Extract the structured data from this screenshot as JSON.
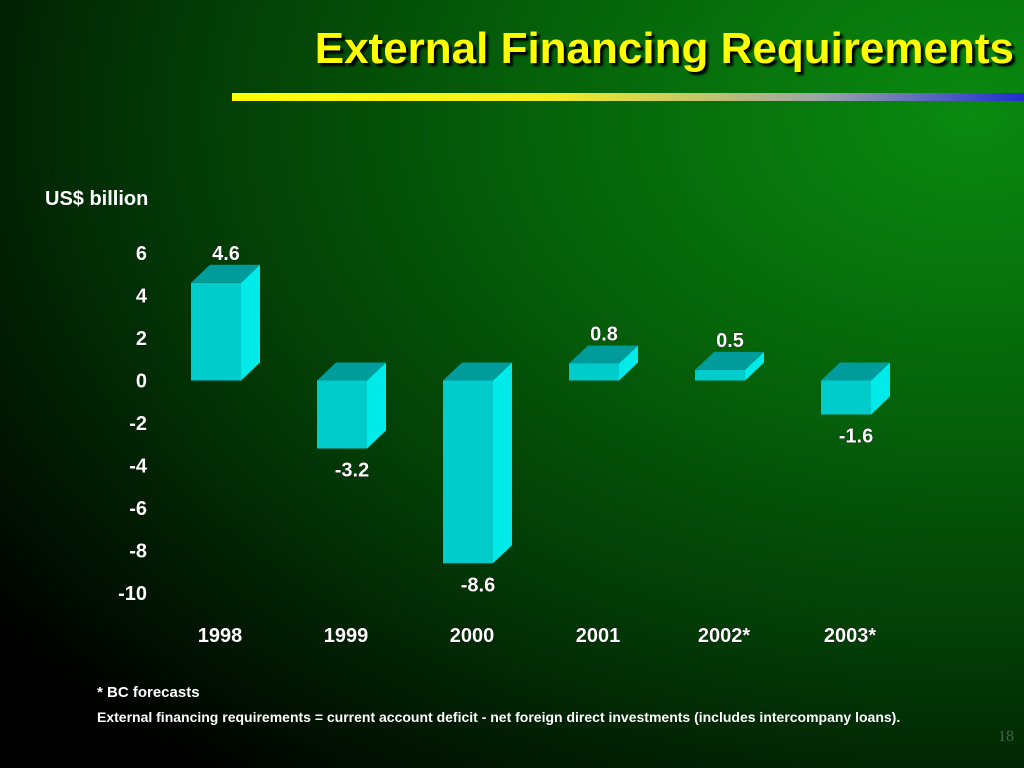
{
  "slide": {
    "title": "External Financing Requirements",
    "footnote_1": "* BC forecasts",
    "footnote_2": "External financing requirements = current account deficit - net foreign direct investments (includes intercompany loans).",
    "page_number": "18"
  },
  "colors": {
    "bar_front": "#00cccc",
    "bar_side": "#00eaea",
    "bar_top": "#009c9c",
    "title": "#ffff00",
    "text": "#ffffff"
  },
  "chart_data": {
    "type": "bar",
    "categories": [
      "1998",
      "1999",
      "2000",
      "2001",
      "2002*",
      "2003*"
    ],
    "values": [
      4.6,
      -3.2,
      -8.6,
      0.8,
      0.5,
      -1.6
    ],
    "data_labels": [
      "4.6",
      "-3.2",
      "-8.6",
      "0.8",
      "0.5",
      "-1.6"
    ],
    "ylabel": "US$ billion",
    "xlabel": "",
    "ylim": [
      -10,
      6
    ],
    "yticks": [
      6,
      4,
      2,
      0,
      -2,
      -4,
      -6,
      -8,
      -10
    ],
    "grid": false,
    "legend": "none"
  }
}
